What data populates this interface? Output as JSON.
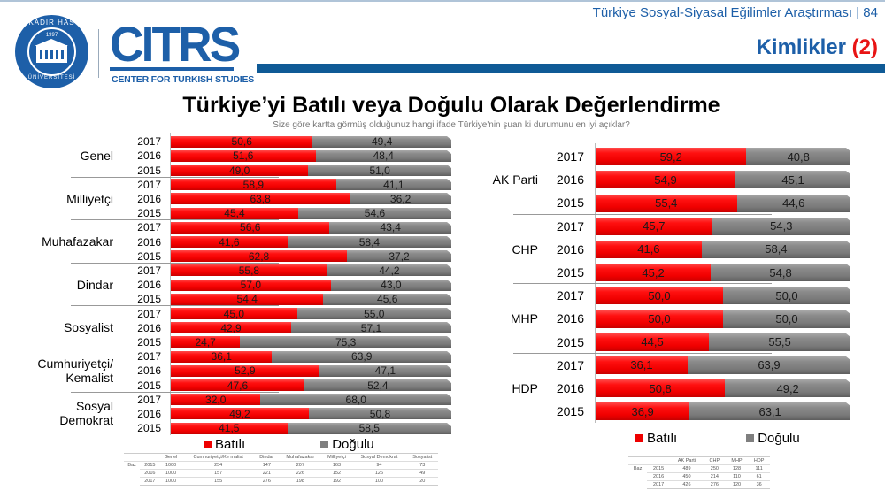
{
  "header": {
    "report_title": "Türkiye Sosyal-Siyasal Eğilimler Araştırması | 84",
    "section_title": "Kimlikler",
    "section_number": "(2)",
    "logo_seal_top": "KADİR HAS",
    "logo_seal_year": "1997",
    "logo_seal_bottom": "ÜNİVERSİTESİ",
    "logo_name": "CITRS",
    "logo_subtitle": "CENTER FOR TURKISH STUDIES"
  },
  "page": {
    "title": "Türkiye’yi Batılı veya Doğulu Olarak Değerlendirme",
    "question": "Size göre kartta görmüş olduğunuz hangi ifade Türkiye'nin şuan ki durumunu en iyi açıklar?"
  },
  "colors": {
    "batili": "#ee0000",
    "dogulu": "#7f7f7f",
    "brand_blue": "#1d5fa8",
    "accent_red": "#e81414"
  },
  "legend": {
    "batili": "Batılı",
    "dogulu": "Doğulu"
  },
  "chart_data": [
    {
      "type": "bar",
      "orientation": "horizontal-stacked-100",
      "title": "Türkiye’yi Batılı veya Doğulu Olarak Değerlendirme (Kimlik grupları)",
      "legend": [
        "Batılı",
        "Doğulu"
      ],
      "groups": [
        {
          "label": "Genel",
          "rows": [
            {
              "year": "2017",
              "batili": "50,6",
              "dogulu": "49,4"
            },
            {
              "year": "2016",
              "batili": "51,6",
              "dogulu": "48,4"
            },
            {
              "year": "2015",
              "batili": "49,0",
              "dogulu": "51,0"
            }
          ]
        },
        {
          "label": "Milliyetçi",
          "rows": [
            {
              "year": "2017",
              "batili": "58,9",
              "dogulu": "41,1"
            },
            {
              "year": "2016",
              "batili": "63,8",
              "dogulu": "36,2"
            },
            {
              "year": "2015",
              "batili": "45,4",
              "dogulu": "54,6"
            }
          ]
        },
        {
          "label": "Muhafazakar",
          "rows": [
            {
              "year": "2017",
              "batili": "56,6",
              "dogulu": "43,4"
            },
            {
              "year": "2016",
              "batili": "41,6",
              "dogulu": "58,4"
            },
            {
              "year": "2015",
              "batili": "62,8",
              "dogulu": "37,2"
            }
          ]
        },
        {
          "label": "Dindar",
          "rows": [
            {
              "year": "2017",
              "batili": "55,8",
              "dogulu": "44,2"
            },
            {
              "year": "2016",
              "batili": "57,0",
              "dogulu": "43,0"
            },
            {
              "year": "2015",
              "batili": "54,4",
              "dogulu": "45,6"
            }
          ]
        },
        {
          "label": "Sosyalist",
          "rows": [
            {
              "year": "2017",
              "batili": "45,0",
              "dogulu": "55,0"
            },
            {
              "year": "2016",
              "batili": "42,9",
              "dogulu": "57,1"
            },
            {
              "year": "2015",
              "batili": "24,7",
              "dogulu": "75,3"
            }
          ]
        },
        {
          "label": "Cumhuriyetçi/\nKemalist",
          "rows": [
            {
              "year": "2017",
              "batili": "36,1",
              "dogulu": "63,9"
            },
            {
              "year": "2016",
              "batili": "52,9",
              "dogulu": "47,1"
            },
            {
              "year": "2015",
              "batili": "47,6",
              "dogulu": "52,4"
            }
          ]
        },
        {
          "label": "Sosyal\nDemokrat",
          "rows": [
            {
              "year": "2017",
              "batili": "32,0",
              "dogulu": "68,0"
            },
            {
              "year": "2016",
              "batili": "49,2",
              "dogulu": "50,8"
            },
            {
              "year": "2015",
              "batili": "41,5",
              "dogulu": "58,5"
            }
          ]
        }
      ],
      "xlim": [
        0,
        100
      ],
      "grid": false,
      "legend_position": "bottom"
    },
    {
      "type": "bar",
      "orientation": "horizontal-stacked-100",
      "title": "Türkiye’yi Batılı veya Doğulu Olarak Değerlendirme (Partiler)",
      "legend": [
        "Batılı",
        "Doğulu"
      ],
      "groups": [
        {
          "label": "AK Parti",
          "rows": [
            {
              "year": "2017",
              "batili": "59,2",
              "dogulu": "40,8"
            },
            {
              "year": "2016",
              "batili": "54,9",
              "dogulu": "45,1"
            },
            {
              "year": "2015",
              "batili": "55,4",
              "dogulu": "44,6"
            }
          ]
        },
        {
          "label": "CHP",
          "rows": [
            {
              "year": "2017",
              "batili": "45,7",
              "dogulu": "54,3"
            },
            {
              "year": "2016",
              "batili": "41,6",
              "dogulu": "58,4"
            },
            {
              "year": "2015",
              "batili": "45,2",
              "dogulu": "54,8"
            }
          ]
        },
        {
          "label": "MHP",
          "rows": [
            {
              "year": "2017",
              "batili": "50,0",
              "dogulu": "50,0"
            },
            {
              "year": "2016",
              "batili": "50,0",
              "dogulu": "50,0"
            },
            {
              "year": "2015",
              "batili": "44,5",
              "dogulu": "55,5"
            }
          ]
        },
        {
          "label": "HDP",
          "rows": [
            {
              "year": "2017",
              "batili": "36,1",
              "dogulu": "63,9"
            },
            {
              "year": "2016",
              "batili": "50,8",
              "dogulu": "49,2"
            },
            {
              "year": "2015",
              "batili": "36,9",
              "dogulu": "63,1"
            }
          ]
        }
      ],
      "xlim": [
        0,
        100
      ],
      "grid": false,
      "legend_position": "bottom"
    }
  ],
  "base_tables": {
    "left": {
      "row_label": "Baz",
      "headers": [
        "Genel",
        "Cumhuriyetçi/Ke malist",
        "Dindar",
        "Muhafazakar",
        "Milliyetçi",
        "Sosyal Demokrat",
        "Sosyalist"
      ],
      "rows": [
        {
          "year": "2015",
          "values": [
            "1000",
            "254",
            "147",
            "207",
            "163",
            "94",
            "73"
          ]
        },
        {
          "year": "2016",
          "values": [
            "1000",
            "157",
            "221",
            "226",
            "152",
            "126",
            "49"
          ]
        },
        {
          "year": "2017",
          "values": [
            "1000",
            "155",
            "276",
            "198",
            "192",
            "100",
            "20"
          ]
        }
      ]
    },
    "right": {
      "row_label": "Baz",
      "headers": [
        "AK Parti",
        "CHP",
        "MHP",
        "HDP"
      ],
      "rows": [
        {
          "year": "2015",
          "values": [
            "489",
            "250",
            "128",
            "111"
          ]
        },
        {
          "year": "2016",
          "values": [
            "450",
            "214",
            "110",
            "61"
          ]
        },
        {
          "year": "2017",
          "values": [
            "426",
            "276",
            "120",
            "36"
          ]
        }
      ]
    }
  }
}
